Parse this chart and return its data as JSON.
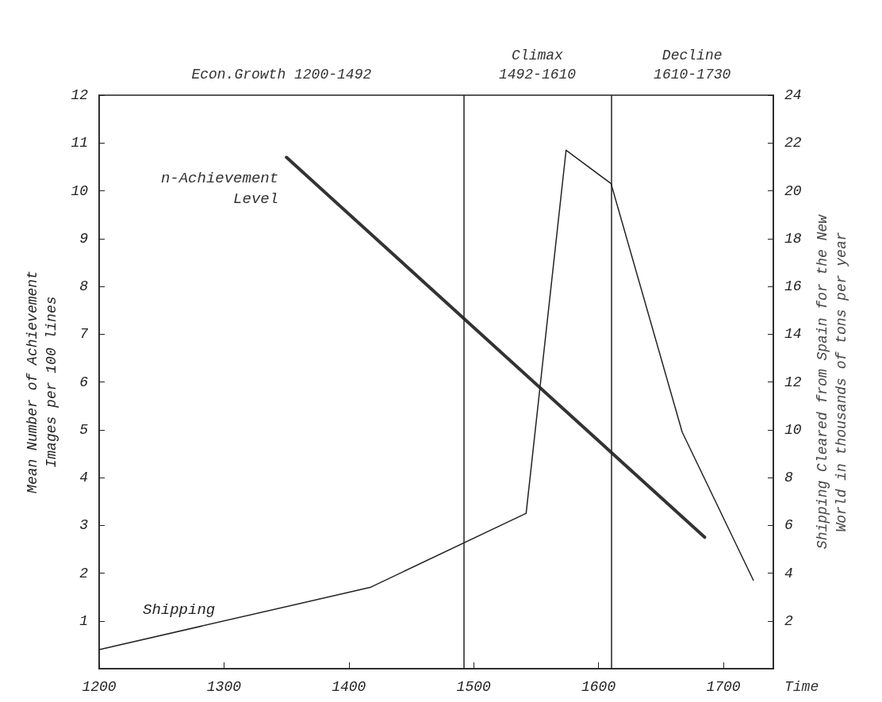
{
  "chart_data": {
    "type": "line",
    "xlabel": "Time",
    "ylabel": "Mean Number of Achievement\nImages per 100 lines",
    "y2label": "Shipping Cleared from Spain for the New\nWorld in thousands of tons per year",
    "series": [
      {
        "name": "n-Achievement\nLevel",
        "color": "#333333",
        "x": [
          1350,
          1685
        ],
        "values": [
          10.7,
          2.75
        ]
      },
      {
        "name": "Shipping",
        "color": "#222222",
        "axis": "y2",
        "x": [
          1200,
          1417,
          1542,
          1574,
          1610,
          1667,
          1724
        ],
        "values": [
          0.8,
          3.4,
          6.5,
          21.7,
          20.3,
          9.9,
          3.7
        ]
      }
    ],
    "xlim": [
      1200,
      1740
    ],
    "xticks": [
      1200,
      1300,
      1400,
      1500,
      1600,
      1700
    ],
    "ylim": [
      0,
      12
    ],
    "yticks": [
      1,
      2,
      3,
      4,
      5,
      6,
      7,
      8,
      9,
      10,
      11,
      12
    ],
    "y2lim": [
      0,
      24
    ],
    "y2ticks": [
      2,
      4,
      6,
      8,
      10,
      12,
      14,
      16,
      18,
      20,
      22,
      24
    ],
    "ref_lines": [
      {
        "axis": "x",
        "value": 1492
      },
      {
        "axis": "x",
        "value": 1610
      }
    ],
    "annotations": [
      "Econ.Growth 1200-1492",
      "Climax\n1492-1610",
      "Decline\n1610-1730"
    ],
    "grid": false,
    "legend": false,
    "marker": "none",
    "line_style": "solid"
  }
}
